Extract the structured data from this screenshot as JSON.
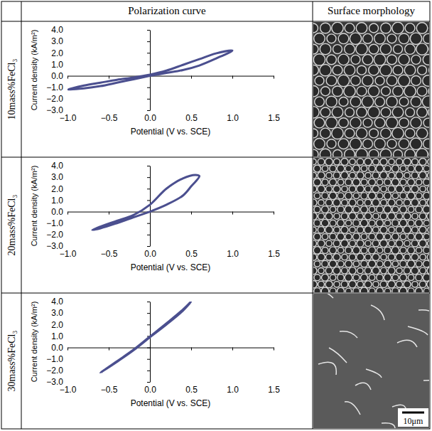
{
  "table": {
    "headers": [
      "Polarization curve",
      "Surface morphology"
    ],
    "rows": [
      {
        "label": "10mass%FeCl₃"
      },
      {
        "label": "20mass%FeCl₃"
      },
      {
        "label": "30mass%FeCl₃"
      }
    ]
  },
  "scale_bar": "10μm",
  "chart_data": [
    {
      "type": "line",
      "xlabel": "Potential (V vs. SCE)",
      "ylabel": "Current density (kA/m²)",
      "color": "#4b4f8f",
      "x": [
        0,
        0.2,
        0.4,
        0.6,
        0.8,
        1.0,
        0.8,
        0.6,
        0.4,
        0.2,
        0,
        -0.2,
        -0.4,
        -0.6,
        -0.8,
        -1.0,
        -0.8,
        -0.6,
        -0.4,
        -0.2,
        0
      ],
      "values": [
        0,
        0.25,
        0.5,
        0.9,
        1.5,
        2.2,
        1.95,
        1.45,
        0.95,
        0.45,
        0.1,
        -0.15,
        -0.35,
        -0.6,
        -0.85,
        -1.2,
        -1.1,
        -0.9,
        -0.6,
        -0.3,
        0
      ],
      "xlim": [
        -1.0,
        1.5
      ],
      "xticks": [
        {
          "value": -1.0,
          "label": "−1.0"
        },
        {
          "value": -0.5,
          "label": "−0.5"
        },
        {
          "value": 0,
          "label": "0.0"
        },
        {
          "value": 0.5,
          "label": "0.5"
        },
        {
          "value": 1.0,
          "label": "1.0"
        },
        {
          "value": 1.5,
          "label": "1.5"
        }
      ],
      "ylim": [
        -3.0,
        4.0
      ],
      "yticks": [
        {
          "value": -3,
          "label": "−3.0"
        },
        {
          "value": -2,
          "label": "−2.0"
        },
        {
          "value": -1,
          "label": "−1.0"
        },
        {
          "value": 0,
          "label": "0.0"
        },
        {
          "value": 1,
          "label": "1.0"
        },
        {
          "value": 2,
          "label": "2.0"
        },
        {
          "value": 3,
          "label": "3.0"
        },
        {
          "value": 4,
          "label": "4.0"
        }
      ]
    },
    {
      "type": "line",
      "xlabel": "Potential (V vs. SCE)",
      "ylabel": "Current density (kA/m²)",
      "color": "#4b4f8f",
      "x": [
        0,
        0.2,
        0.4,
        0.5,
        0.6,
        0.55,
        0.4,
        0.2,
        0,
        -0.2,
        -0.4,
        -0.6,
        -0.7,
        -0.6,
        -0.4,
        -0.2,
        0
      ],
      "values": [
        0,
        0.6,
        1.4,
        2.2,
        3.1,
        3.2,
        2.9,
        2.0,
        0.6,
        -0.3,
        -0.8,
        -1.3,
        -1.6,
        -1.45,
        -1.0,
        -0.5,
        0
      ],
      "xlim": [
        -1.0,
        1.5
      ],
      "xticks": [
        {
          "value": -1.0,
          "label": "−1.0"
        },
        {
          "value": -0.5,
          "label": "−0.5"
        },
        {
          "value": 0,
          "label": "0.0"
        },
        {
          "value": 0.5,
          "label": "0.5"
        },
        {
          "value": 1.0,
          "label": "1.0"
        },
        {
          "value": 1.5,
          "label": "1.5"
        }
      ],
      "ylim": [
        -3.0,
        4.0
      ],
      "yticks": [
        {
          "value": -3,
          "label": "−3.0"
        },
        {
          "value": -2,
          "label": "−2.0"
        },
        {
          "value": -1,
          "label": "−1.0"
        },
        {
          "value": 0,
          "label": "0.0"
        },
        {
          "value": 1,
          "label": "1.0"
        },
        {
          "value": 2,
          "label": "2.0"
        },
        {
          "value": 3,
          "label": "3.0"
        },
        {
          "value": 4,
          "label": "4.0"
        }
      ]
    },
    {
      "type": "line",
      "xlabel": "Potential (V vs. SCE)",
      "ylabel": "Current density (kA/m²)",
      "color": "#4b4f8f",
      "x": [
        0,
        0.2,
        0.4,
        0.5,
        0.4,
        0.2,
        0,
        -0.2,
        -0.4,
        -0.6,
        -0.4,
        -0.2,
        0
      ],
      "values": [
        0.9,
        2.0,
        3.2,
        4.0,
        3.3,
        2.1,
        0.95,
        -0.2,
        -1.2,
        -2.2,
        -1.25,
        -0.25,
        0.9
      ],
      "xlim": [
        -1.0,
        1.5
      ],
      "xticks": [
        {
          "value": -1.0,
          "label": "−1.0"
        },
        {
          "value": -0.5,
          "label": "−0.5"
        },
        {
          "value": 0,
          "label": "0.0"
        },
        {
          "value": 0.5,
          "label": "0.5"
        },
        {
          "value": 1.0,
          "label": "1.0"
        },
        {
          "value": 1.5,
          "label": "1.5"
        }
      ],
      "ylim": [
        -3.0,
        4.0
      ],
      "yticks": [
        {
          "value": -3,
          "label": "−3.0"
        },
        {
          "value": -2,
          "label": "−2.0"
        },
        {
          "value": -1,
          "label": "−1.0"
        },
        {
          "value": 0,
          "label": "0.0"
        },
        {
          "value": 1,
          "label": "1.0"
        },
        {
          "value": 2,
          "label": "2.0"
        },
        {
          "value": 3,
          "label": "3.0"
        },
        {
          "value": 4,
          "label": "4.0"
        }
      ]
    }
  ]
}
